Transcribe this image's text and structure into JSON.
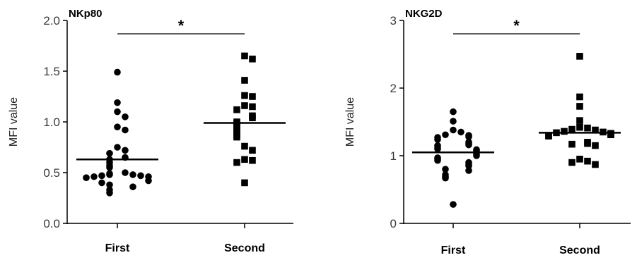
{
  "chart_data": [
    {
      "type": "scatter",
      "title": "NKp80",
      "ylabel": "MFI value",
      "xlabel": "",
      "categories": [
        "First",
        "Second"
      ],
      "ylim": [
        0,
        2.0
      ],
      "yticks": [
        "0.0",
        "0.5",
        "1.0",
        "1.5",
        "2.0"
      ],
      "ytick_values": [
        0,
        0.5,
        1.0,
        1.5,
        2.0
      ],
      "significance": "*",
      "series": [
        {
          "category": "First",
          "marker": "circle",
          "mean": 0.63,
          "values": [
            1.49,
            1.19,
            1.1,
            1.05,
            0.95,
            0.92,
            0.75,
            0.72,
            0.69,
            0.65,
            0.63,
            0.6,
            0.57,
            0.55,
            0.5,
            0.49,
            0.48,
            0.48,
            0.47,
            0.47,
            0.46,
            0.46,
            0.45,
            0.42,
            0.4,
            0.38,
            0.36,
            0.33,
            0.3
          ]
        },
        {
          "category": "Second",
          "marker": "square",
          "mean": 0.99,
          "values": [
            1.65,
            1.62,
            1.41,
            1.26,
            1.25,
            1.16,
            1.15,
            1.12,
            1.06,
            1.04,
            1.0,
            0.98,
            0.95,
            0.92,
            0.9,
            0.87,
            0.85,
            0.76,
            0.72,
            0.63,
            0.62,
            0.6,
            0.4
          ]
        }
      ]
    },
    {
      "type": "scatter",
      "title": "NKG2D",
      "ylabel": "MFI value",
      "xlabel": "",
      "categories": [
        "First",
        "Second"
      ],
      "ylim": [
        0,
        3
      ],
      "yticks": [
        "0",
        "1",
        "2",
        "3"
      ],
      "ytick_values": [
        0,
        1,
        2,
        3
      ],
      "significance": "*",
      "series": [
        {
          "category": "First",
          "marker": "circle",
          "mean": 1.05,
          "values": [
            1.65,
            1.51,
            1.38,
            1.35,
            1.31,
            1.3,
            1.28,
            1.27,
            1.24,
            1.2,
            1.18,
            1.16,
            1.15,
            1.12,
            1.1,
            1.09,
            1.08,
            1.06,
            1.04,
            1.02,
            1.0,
            0.97,
            0.95,
            0.93,
            0.9,
            0.87,
            0.85,
            0.8,
            0.78,
            0.72,
            0.69,
            0.67,
            0.28
          ]
        },
        {
          "category": "Second",
          "marker": "square",
          "mean": 1.34,
          "values": [
            2.47,
            1.87,
            1.73,
            1.52,
            1.42,
            1.41,
            1.39,
            1.38,
            1.36,
            1.35,
            1.34,
            1.33,
            1.32,
            1.31,
            1.3,
            1.29,
            1.2,
            1.18,
            1.17,
            1.15,
            0.95,
            0.92,
            0.9,
            0.87
          ]
        }
      ]
    }
  ]
}
